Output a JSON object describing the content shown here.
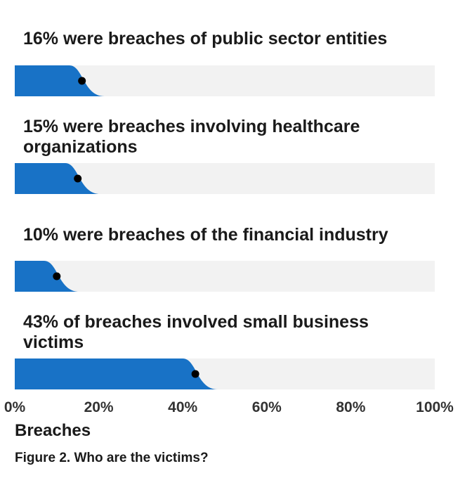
{
  "chart_data": {
    "type": "bar",
    "orientation": "horizontal",
    "categories": [
      [
        "16% were breaches of public sector entities"
      ],
      [
        "15% were breaches involving healthcare",
        "organizations"
      ],
      [
        "10% were breaches of the financial industry"
      ],
      [
        "43% of breaches involved small business",
        "victims"
      ]
    ],
    "values": [
      16,
      15,
      10,
      43
    ],
    "xlabel": "Breaches",
    "xlim": [
      0,
      100
    ],
    "xticks": [
      "0%",
      "20%",
      "40%",
      "60%",
      "80%",
      "100%"
    ],
    "grid": false,
    "colors": {
      "bar": "#1872c6",
      "track": "#f2f2f2",
      "marker": "#000000"
    }
  },
  "caption": "Figure 2. Who are the victims?"
}
